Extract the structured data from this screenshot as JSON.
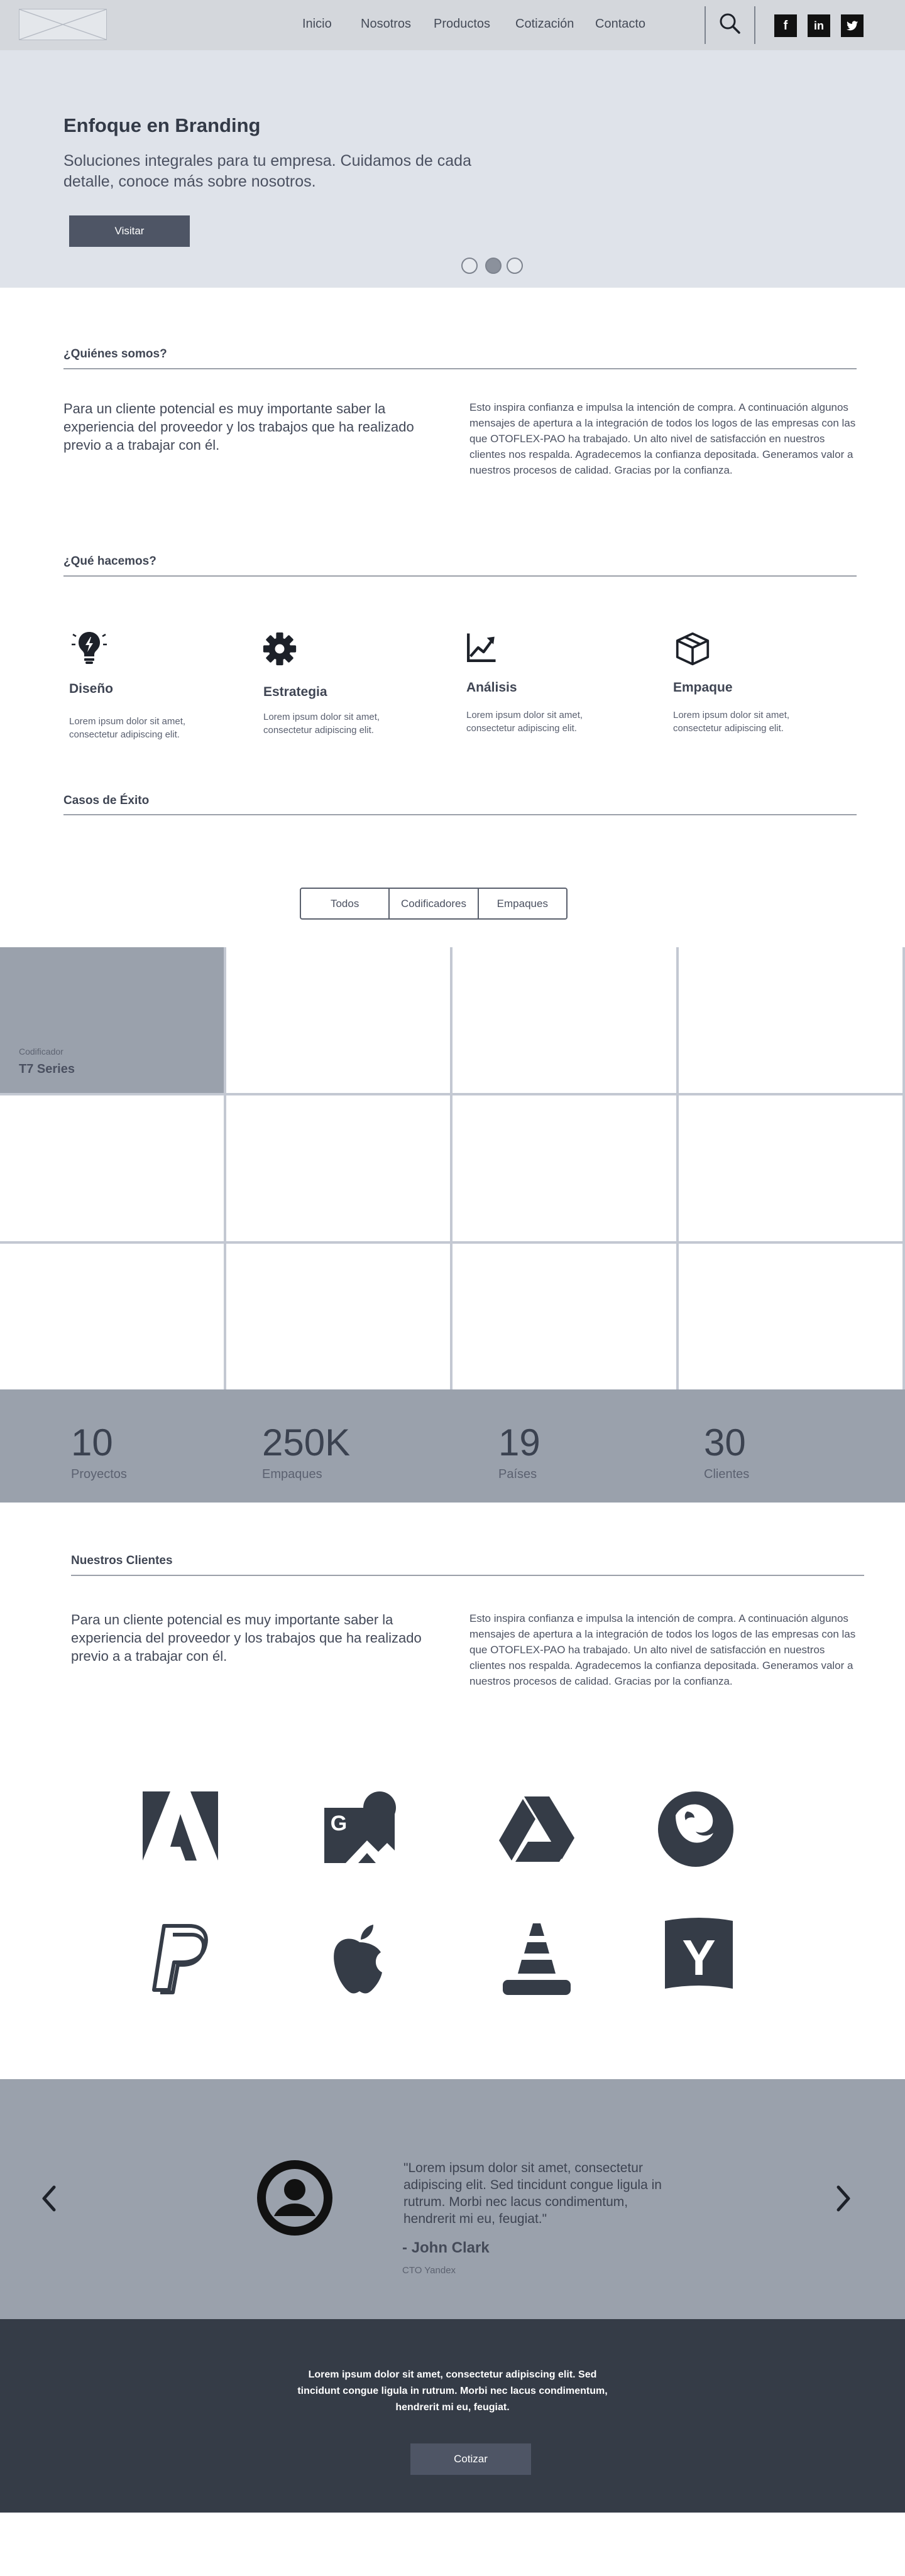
{
  "header": {
    "nav": [
      "Inicio",
      "Nosotros",
      "Productos",
      "Cotización",
      "Contacto"
    ],
    "social": [
      "f",
      "in",
      "t"
    ]
  },
  "hero": {
    "title": "Enfoque en Branding",
    "subtitle": "Soluciones integrales para tu empresa. Cuidamos de cada detalle, conoce más sobre nosotros.",
    "button": "Visitar",
    "slides": 3,
    "active_slide": 2
  },
  "about": {
    "title": "¿Quiénes somos?",
    "left": "Para un cliente potencial es muy importante saber la experiencia del proveedor y los trabajos que ha realizado previo a a trabajar con él.",
    "right": "Esto inspira confianza e impulsa la intención de compra. A continuación algunos mensajes de apertura a la integración de todos los logos de las empresas con las que OTOFLEX-PAO ha trabajado. Un alto nivel de satisfacción en nuestros clientes nos respalda. Agradecemos la confianza depositada. Generamos valor a nuestros procesos de calidad. Gracias por la confianza."
  },
  "services": {
    "title": "¿Qué hacemos?",
    "items": [
      {
        "title": "Diseño",
        "desc": "Lorem ipsum dolor sit amet, consectetur adipiscing elit.",
        "icon": "lightbulb-icon"
      },
      {
        "title": "Estrategia",
        "desc": "Lorem ipsum dolor sit amet, consectetur adipiscing elit.",
        "icon": "gear-icon"
      },
      {
        "title": "Análisis",
        "desc": "Lorem ipsum dolor sit amet, consectetur adipiscing elit.",
        "icon": "chart-icon"
      },
      {
        "title": "Empaque",
        "desc": "Lorem ipsum dolor sit amet, consectetur adipiscing elit.",
        "icon": "box-icon"
      }
    ]
  },
  "cases": {
    "title": "Casos de Éxito",
    "tabs": [
      "Todos",
      "Codificadores",
      "Empaques"
    ],
    "featured": {
      "category": "Codificador",
      "name": "T7 Series"
    }
  },
  "stats": [
    {
      "value": "10",
      "label": "Proyectos"
    },
    {
      "value": "250K",
      "label": "Empaques"
    },
    {
      "value": "19",
      "label": "Países"
    },
    {
      "value": "30",
      "label": "Clientes"
    }
  ],
  "clients": {
    "title": "Nuestros Clientes",
    "left": "Para un cliente potencial es muy importante saber la experiencia del proveedor y los trabajos que ha realizado previo a a trabajar con él.",
    "right": "Esto inspira confianza e impulsa la intención de compra. A continuación algunos mensajes de apertura a la integración de todos los logos de las empresas con las que OTOFLEX-PAO ha trabajado. Un alto nivel de satisfacción en nuestros clientes nos respalda. Agradecemos la confianza depositada. Generamos valor a nuestros procesos de calidad. Gracias por la confianza.",
    "logos": [
      "adobe-icon",
      "google-images-icon",
      "google-drive-icon",
      "firefox-icon",
      "paypal-icon",
      "apple-icon",
      "vlc-icon",
      "yandex-icon"
    ]
  },
  "testimonial": {
    "quote": "\"Lorem ipsum dolor sit amet, consectetur adipiscing elit. Sed tincidunt congue ligula in rutrum. Morbi nec lacus condimentum, hendrerit mi eu, feugiat.\"",
    "author": "- John Clark",
    "role": "CTO Yandex"
  },
  "footer": {
    "text": "Lorem ipsum dolor sit amet, consectetur adipiscing elit. Sed tincidunt congue ligula in rutrum. Morbi nec lacus condimentum, hendrerit mi eu, feugiat.",
    "button": "Cotizar"
  },
  "colors": {
    "header": "#d4d7dc",
    "hero": "#dfe3ea",
    "stats": "#9aa1ac",
    "footer": "#353c47",
    "button": "#4e5565"
  }
}
